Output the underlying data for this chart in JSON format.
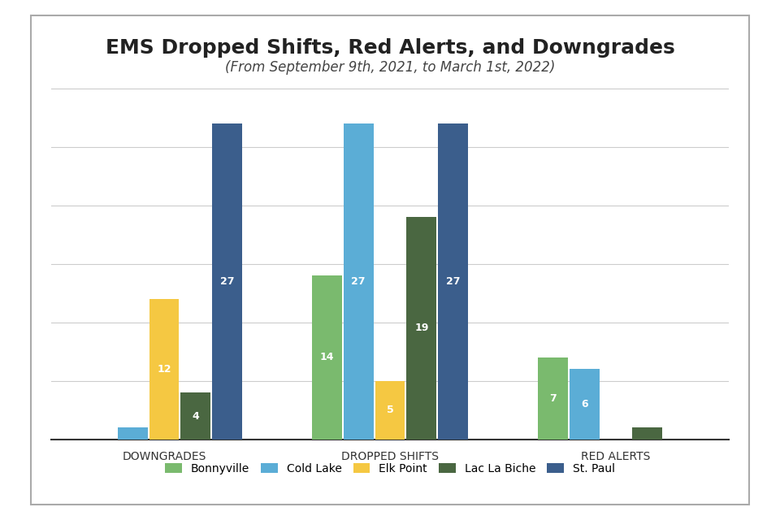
{
  "title": "EMS Dropped Shifts, Red Alerts, and Downgrades",
  "subtitle": "(From September 9th, 2021, to March 1st, 2022)",
  "categories": [
    "DOWNGRADES",
    "DROPPED SHIFTS",
    "RED ALERTS"
  ],
  "series": {
    "Bonnyville": [
      0,
      14,
      7
    ],
    "Cold Lake": [
      1,
      27,
      6
    ],
    "Elk Point": [
      12,
      5,
      0
    ],
    "Lac La Biche": [
      4,
      19,
      1
    ],
    "St. Paul": [
      27,
      27,
      0
    ]
  },
  "colors": {
    "Bonnyville": "#7aba6e",
    "Cold Lake": "#5badd6",
    "Elk Point": "#f5c842",
    "Lac La Biche": "#4a6741",
    "St. Paul": "#3b5e8c"
  },
  "bar_width": 0.14,
  "ylim": [
    0,
    32
  ],
  "yticks": [
    0,
    5,
    10,
    15,
    20,
    25,
    30
  ],
  "background_color": "#ffffff",
  "title_fontsize": 18,
  "subtitle_fontsize": 12,
  "label_fontsize": 9,
  "axis_label_fontsize": 10,
  "legend_fontsize": 10
}
